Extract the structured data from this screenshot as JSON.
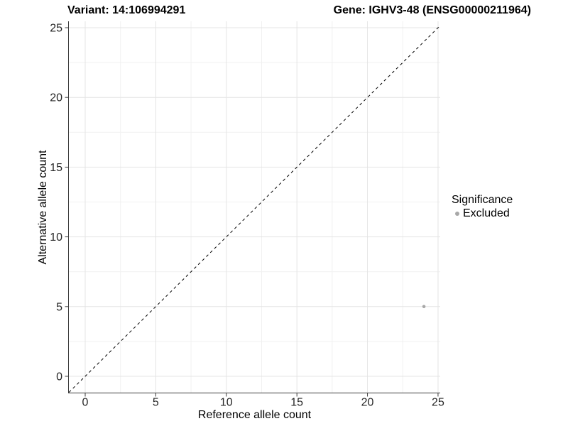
{
  "titles": {
    "variant": "Variant: 14:106994291",
    "gene": "Gene: IGHV3-48 (ENSG00000211964)"
  },
  "axes": {
    "x": {
      "label": "Reference allele count"
    },
    "y": {
      "label": "Alternative allele count"
    }
  },
  "legend": {
    "title": "Significance",
    "items": [
      {
        "label": "Excluded",
        "color": "#a8a8a8"
      }
    ]
  },
  "chart_data": {
    "type": "scatter",
    "title_left": "Variant: 14:106994291",
    "title_right": "Gene: IGHV3-48 (ENSG00000211964)",
    "xlabel": "Reference allele count",
    "ylabel": "Alternative allele count",
    "xlim": [
      0,
      25
    ],
    "ylim": [
      0,
      25
    ],
    "x_ticks": [
      0,
      5,
      10,
      15,
      20,
      25
    ],
    "y_ticks": [
      0,
      5,
      10,
      15,
      20,
      25
    ],
    "grid": "major+minor",
    "legend_position": "right",
    "reference_line": {
      "equation": "y = x",
      "style": "dashed",
      "color": "#000000"
    },
    "series": [
      {
        "name": "Excluded",
        "color": "#a8a8a8",
        "points": [
          [
            24,
            5
          ]
        ]
      }
    ]
  },
  "colors": {
    "background": "#ffffff",
    "axis": "#3c3c3c",
    "grid_major": "#e4e4e4",
    "grid_minor": "#f1f1f1",
    "excluded_point": "#a8a8a8"
  }
}
